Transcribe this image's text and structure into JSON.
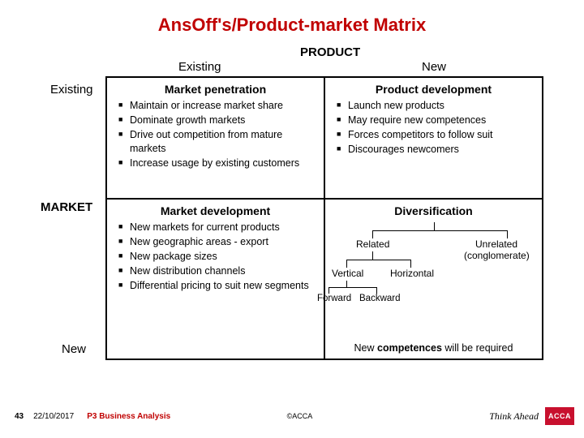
{
  "title": "AnsOff's/Product-market Matrix",
  "title_color": "#c00000",
  "axes": {
    "product": "PRODUCT",
    "market": "MARKET",
    "col_existing": "Existing",
    "col_new": "New",
    "row_existing": "Existing",
    "row_new": "New"
  },
  "cells": {
    "market_penetration": {
      "title": "Market penetration",
      "items": [
        "Maintain or increase market share",
        "Dominate growth markets",
        "Drive out competition from mature markets",
        "Increase usage by existing customers"
      ]
    },
    "product_development": {
      "title": "Product development",
      "items": [
        "Launch new products",
        "May require new competences",
        "Forces competitors to follow suit",
        "Discourages newcomers"
      ]
    },
    "market_development": {
      "title": "Market development",
      "items": [
        "New markets for current products",
        "New geographic areas - export",
        "New package sizes",
        "New distribution channels",
        "Differential pricing to suit new segments"
      ]
    },
    "diversification": {
      "title": "Diversification",
      "tree": {
        "related": "Related",
        "unrelated_l1": "Unrelated",
        "unrelated_l2": "(conglomerate)",
        "vertical": "Vertical",
        "horizontal": "Horizontal",
        "forward": "Forward",
        "backward": "Backward"
      },
      "footer_pre": "New ",
      "footer_bold": "competences",
      "footer_post": " will be required"
    }
  },
  "footer": {
    "page": "43",
    "date": "22/10/2017",
    "course": "P3  Business Analysis",
    "copyright": "©ACCA",
    "tagline": "Think Ahead",
    "badge": "ACCA",
    "badge_bg": "#c8102e"
  },
  "styling": {
    "background": "#ffffff",
    "border_color": "#000000",
    "bullet_color": "#000000",
    "title_fontsize": 22,
    "cell_title_fontsize": 14,
    "body_fontsize": 12.5,
    "footer_fontsize": 10,
    "grid_cols": 2,
    "grid_rows": 2
  }
}
